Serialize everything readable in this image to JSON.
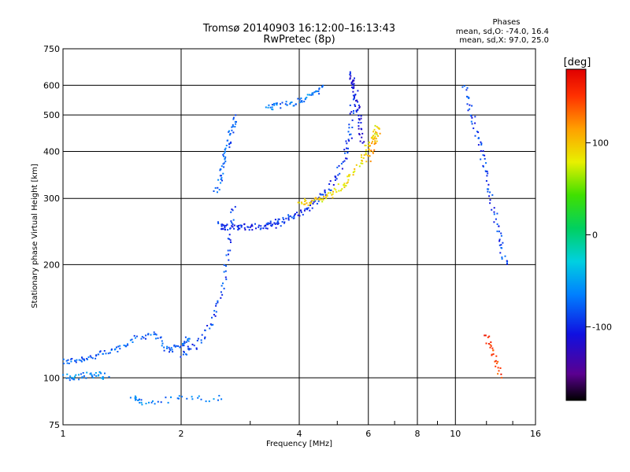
{
  "chart_data": {
    "type": "scatter",
    "title": "Tromsø 20140903 16:12:00–16:13:43",
    "subtitle": "RwPretec (8p)",
    "xlabel": "Frequency [MHz]",
    "ylabel": "Stationary phase Virtual Height [km]",
    "x_scale": "log",
    "y_scale": "log",
    "xlim": [
      1,
      16
    ],
    "ylim": [
      75,
      750
    ],
    "x_ticks": [
      "1",
      "2",
      "4",
      "6",
      "8",
      "10",
      "16"
    ],
    "y_ticks": [
      "75",
      "100",
      "200",
      "300",
      "400",
      "500",
      "600",
      "750"
    ],
    "grid": true,
    "phase_stats": {
      "title": "Phases",
      "line_o": "mean, sd,O: -74.0, 16.4",
      "line_x": "mean, sd,X:  97.0, 25.0"
    },
    "colorbar": {
      "label": "[deg]",
      "min": -180,
      "max": 180,
      "ticks": [
        "100",
        "0",
        "-100"
      ],
      "tick_values": [
        100,
        0,
        -100
      ]
    },
    "traces": [
      {
        "x": [
          1.0,
          1.1,
          1.2,
          1.35,
          1.5,
          1.7,
          1.85,
          2.0,
          2.1
        ],
        "y": [
          110,
          112,
          114,
          118,
          126,
          132,
          118,
          122,
          128
        ],
        "phase": -80
      },
      {
        "x": [
          1.0,
          1.1,
          1.2,
          1.3
        ],
        "y": [
          100,
          101,
          102,
          101
        ],
        "phase": -60
      },
      {
        "x": [
          2.0,
          2.2,
          2.4,
          2.55,
          2.65,
          2.72
        ],
        "y": [
          115,
          122,
          140,
          175,
          230,
          290
        ],
        "phase": -90
      },
      {
        "x": [
          2.45,
          2.55,
          2.62,
          2.68,
          2.75
        ],
        "y": [
          310,
          360,
          400,
          450,
          500
        ],
        "phase": -75
      },
      {
        "x": [
          2.5,
          2.6,
          2.8,
          3.0,
          3.3,
          3.6
        ],
        "y": [
          255,
          252,
          251,
          252,
          253,
          255
        ],
        "phase": -100
      },
      {
        "x": [
          3.3,
          3.6,
          3.9,
          4.2,
          4.5,
          4.9,
          5.2,
          5.4,
          5.5
        ],
        "y": [
          255,
          262,
          270,
          282,
          300,
          330,
          380,
          450,
          560
        ],
        "phase": -95
      },
      {
        "x": [
          4.0,
          4.3,
          4.6,
          5.0,
          5.4,
          5.8,
          6.1,
          6.4
        ],
        "y": [
          290,
          295,
          300,
          315,
          340,
          380,
          430,
          470
        ],
        "phase": 90
      },
      {
        "x": [
          3.3,
          3.6,
          4.0,
          4.3,
          4.6
        ],
        "y": [
          520,
          530,
          545,
          565,
          595
        ],
        "phase": -70
      },
      {
        "x": [
          5.4,
          5.5,
          5.6,
          5.7,
          5.8
        ],
        "y": [
          640,
          600,
          550,
          480,
          420
        ],
        "phase": -110
      },
      {
        "x": [
          6.0,
          6.2,
          6.4
        ],
        "y": [
          380,
          420,
          460
        ],
        "phase": 110
      },
      {
        "x": [
          10.5,
          11.0,
          11.5,
          12.0,
          12.5,
          13.0,
          13.5
        ],
        "y": [
          600,
          500,
          420,
          350,
          280,
          230,
          200
        ],
        "phase": -90
      },
      {
        "x": [
          12.0,
          12.5,
          13.0
        ],
        "y": [
          130,
          115,
          100
        ],
        "phase": 150
      },
      {
        "x": [
          1.5,
          1.6,
          2.0,
          2.6
        ],
        "y": [
          88,
          86,
          88,
          88
        ],
        "phase": -70
      }
    ]
  }
}
